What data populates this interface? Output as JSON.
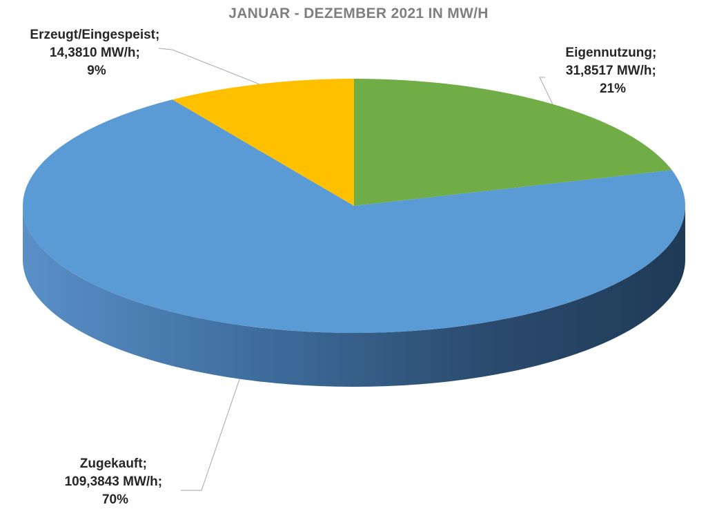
{
  "chart_data": {
    "type": "pie",
    "title": "JANUAR - DEZEMBER 2021 IN MW/H",
    "slices": [
      {
        "label": "Eigennutzung;",
        "value_text": "31,8517 MW/h;",
        "pct_text": "21%",
        "value": 31.8517,
        "percent": 21,
        "color": "#70ad47"
      },
      {
        "label": "Zugekauft;",
        "value_text": "109,3843 MW/h;",
        "pct_text": "70%",
        "value": 109.3843,
        "percent": 70,
        "color": "#5b9bd5"
      },
      {
        "label": "Erzeugt/Eingespeist;",
        "value_text": "14,3810 MW/h;",
        "pct_text": "9%",
        "value": 14.381,
        "percent": 9,
        "color": "#ffc000"
      }
    ]
  }
}
